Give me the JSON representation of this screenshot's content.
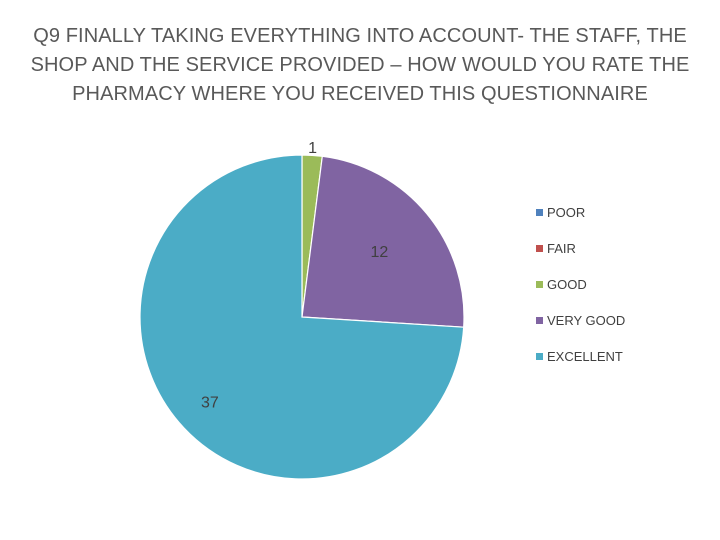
{
  "chart_data": {
    "type": "pie",
    "title": "Q9 FINALLY TAKING EVERYTHING INTO ACCOUNT- THE STAFF, THE SHOP AND THE SERVICE PROVIDED – HOW WOULD YOU RATE THE PHARMACY WHERE YOU RECEIVED THIS QUESTIONNAIRE",
    "title_lines": [
      "Q9 FINALLY TAKING EVERYTHING INTO ACCOUNT- THE STAFF, THE",
      "SHOP AND THE SERVICE PROVIDED – HOW WOULD YOU RATE THE",
      "PHARMACY WHERE YOU RECEIVED THIS QUESTIONNAIRE"
    ],
    "categories": [
      "POOR",
      "FAIR",
      "GOOD",
      "VERY GOOD",
      "EXCELLENT"
    ],
    "values": [
      0,
      0,
      1,
      12,
      37
    ],
    "colors": [
      "#4f81bd",
      "#c0504d",
      "#9bbb59",
      "#8064a2",
      "#4bacc6"
    ],
    "data_labels": [
      "",
      "",
      "1",
      "12",
      "37"
    ],
    "legend_position": "right",
    "start_angle": "top",
    "direction": "clockwise"
  }
}
